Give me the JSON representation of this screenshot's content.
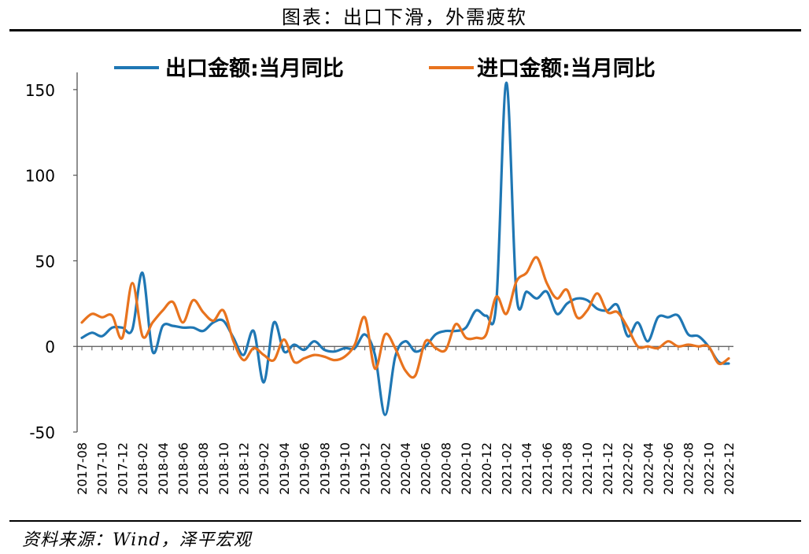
{
  "title": "图表：出口下滑，外需疲软",
  "source": "资料来源：Wind，泽平宏观",
  "colors": {
    "export": "#1f77b4",
    "import": "#e8731e"
  },
  "chart_data": {
    "type": "line",
    "title": "图表：出口下滑，外需疲软",
    "xlabel": "",
    "ylabel": "",
    "ylim": [
      -50,
      155
    ],
    "yticks": [
      -50,
      0,
      50,
      100,
      150
    ],
    "grid": false,
    "legend": "top",
    "x": [
      "2017-08",
      "2017-09",
      "2017-10",
      "2017-11",
      "2017-12",
      "2018-01",
      "2018-02",
      "2018-03",
      "2018-04",
      "2018-05",
      "2018-06",
      "2018-07",
      "2018-08",
      "2018-09",
      "2018-10",
      "2018-11",
      "2018-12",
      "2019-01",
      "2019-02",
      "2019-03",
      "2019-04",
      "2019-05",
      "2019-06",
      "2019-07",
      "2019-08",
      "2019-09",
      "2019-10",
      "2019-11",
      "2019-12",
      "2020-01",
      "2020-02",
      "2020-03",
      "2020-04",
      "2020-05",
      "2020-06",
      "2020-07",
      "2020-08",
      "2020-09",
      "2020-10",
      "2020-11",
      "2020-12",
      "2021-01",
      "2021-02",
      "2021-03",
      "2021-04",
      "2021-05",
      "2021-06",
      "2021-07",
      "2021-08",
      "2021-09",
      "2021-10",
      "2021-11",
      "2021-12",
      "2022-01",
      "2022-02",
      "2022-03",
      "2022-04",
      "2022-05",
      "2022-06",
      "2022-07",
      "2022-08",
      "2022-09",
      "2022-10",
      "2022-11",
      "2022-12"
    ],
    "xtick_labels": [
      "2017-08",
      "2017-10",
      "2017-12",
      "2018-02",
      "2018-04",
      "2018-06",
      "2018-08",
      "2018-10",
      "2018-12",
      "2019-02",
      "2019-04",
      "2019-06",
      "2019-08",
      "2019-10",
      "2019-12",
      "2020-02",
      "2020-04",
      "2020-06",
      "2020-08",
      "2020-10",
      "2020-12",
      "2021-02",
      "2021-04",
      "2021-06",
      "2021-08",
      "2021-10",
      "2021-12",
      "2022-02",
      "2022-04",
      "2022-06",
      "2022-08",
      "2022-10",
      "2022-12"
    ],
    "series": [
      {
        "name": "出口金额:当月同比",
        "color": "#1f77b4",
        "values": [
          5,
          8,
          6,
          11,
          11,
          10,
          43,
          -3,
          12,
          12,
          11,
          11,
          9,
          14,
          15,
          5,
          -5,
          9,
          -21,
          14,
          -3,
          1,
          -2,
          3,
          -2,
          -3,
          -1,
          -1,
          7,
          -5,
          -40,
          -6,
          3,
          -3,
          0,
          7,
          9,
          9,
          11,
          21,
          18,
          25,
          154,
          30,
          32,
          28,
          32,
          19,
          25,
          28,
          27,
          22,
          21,
          24,
          6,
          14,
          3,
          17,
          17,
          18,
          7,
          6,
          0,
          -9,
          -10
        ]
      },
      {
        "name": "进口金额:当月同比",
        "color": "#e8731e",
        "values": [
          14,
          19,
          17,
          18,
          5,
          37,
          6,
          14,
          21,
          26,
          14,
          27,
          20,
          15,
          21,
          3,
          -8,
          -1,
          -5,
          -8,
          4,
          -9,
          -7,
          -5,
          -6,
          -8,
          -6,
          1,
          17,
          -13,
          7,
          -1,
          -14,
          -17,
          3,
          -1,
          -2,
          13,
          5,
          5,
          7,
          29,
          19,
          38,
          43,
          52,
          37,
          28,
          33,
          17,
          21,
          31,
          20,
          20,
          11,
          0,
          0,
          -1,
          3,
          0,
          1,
          0,
          0,
          -10,
          -7
        ]
      }
    ]
  }
}
